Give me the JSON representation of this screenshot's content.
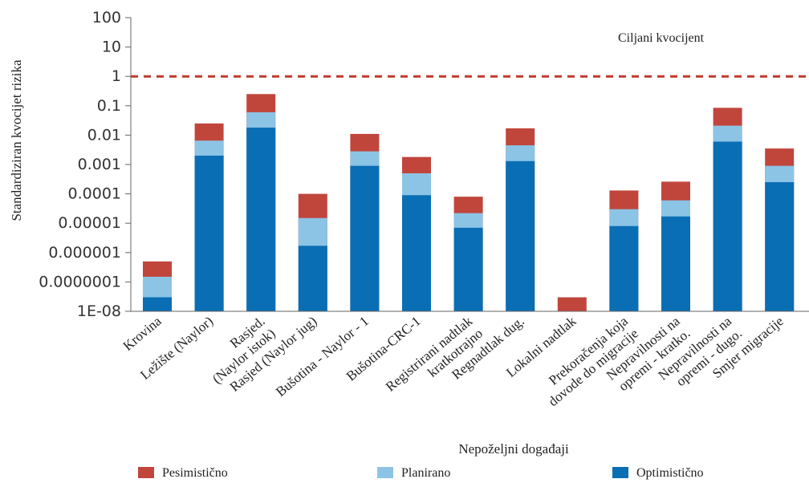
{
  "chart_data": {
    "type": "bar",
    "stacked": true,
    "y_scale": "log",
    "ylim": [
      1e-08,
      100
    ],
    "ylabel": "Standardiziran kvocijet rizika",
    "xlabel": "Nepoželjni događaji",
    "y_tick_labels": [
      "100",
      "10",
      "1",
      "0.1",
      "0.01",
      "0.001",
      "0.0001",
      "0.00001",
      "0.000001",
      "0.0000001",
      "1E-08"
    ],
    "y_ticks": [
      100,
      10,
      1,
      0.1,
      0.01,
      0.001,
      0.0001,
      1e-05,
      1e-06,
      1e-07,
      1e-08
    ],
    "threshold": {
      "value": 1,
      "label": "Ciljani kvocijent",
      "color": "#c0392b"
    },
    "categories": [
      [
        "Krovina"
      ],
      [
        "Ležište  (Naylor)"
      ],
      [
        "Rasjed.",
        "(Naylor istok)"
      ],
      [
        "Rasjed (Naylor jug)"
      ],
      [
        "Bušotina - Naylor - 1"
      ],
      [
        "Bušotina-CRC-1"
      ],
      [
        "Registrirani nadtlak",
        "kratkotrajno"
      ],
      [
        "Regnadtlak  dug."
      ],
      [
        "Lokalni nadtlak"
      ],
      [
        "Prekoračenja koja",
        "dovode do migracije"
      ],
      [
        "Nepravilnosti na",
        "opremi - kratko."
      ],
      [
        "Nepravilnosti na",
        "opremi - dugo."
      ],
      [
        "Smjer migracije"
      ]
    ],
    "series": [
      {
        "name": "Optimistično",
        "color": "#0a6eb4",
        "values": [
          3e-08,
          0.002,
          0.018,
          1.7e-06,
          0.0009,
          9e-05,
          7e-06,
          0.0013,
          null,
          8e-06,
          1.7e-05,
          0.006,
          0.00025
        ]
      },
      {
        "name": "Planirano",
        "color": "#8cc4e6",
        "values": [
          1.5e-07,
          0.0065,
          0.06,
          1.5e-05,
          0.0028,
          0.0005,
          2.2e-05,
          0.0045,
          null,
          3e-05,
          6e-05,
          0.021,
          0.0009
        ]
      },
      {
        "name": "Pesimistično",
        "color": "#c0463c",
        "values": [
          5e-07,
          0.025,
          0.25,
          0.0001,
          0.011,
          0.0018,
          8e-05,
          0.017,
          3e-08,
          0.00013,
          0.00026,
          0.085,
          0.0035
        ]
      }
    ],
    "legend": {
      "placement": "bottom",
      "order": [
        "Pesimistično",
        "Planirano",
        "Optimistično"
      ]
    }
  }
}
